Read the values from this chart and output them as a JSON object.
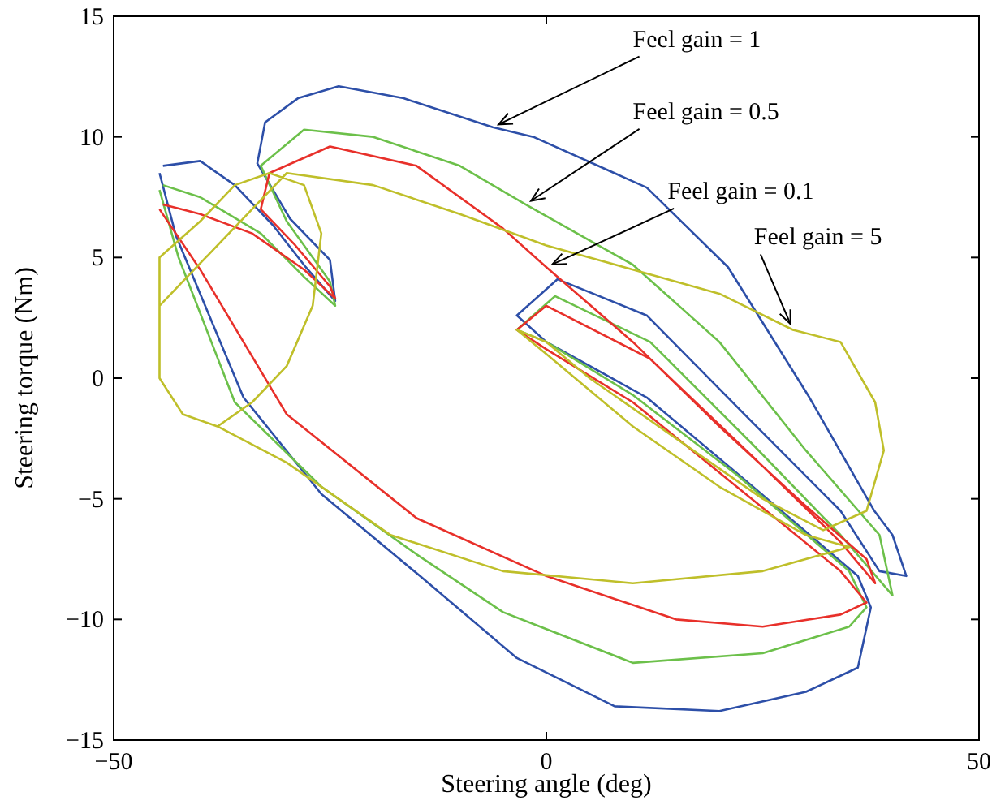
{
  "chart_data": {
    "type": "line",
    "xlabel": "Steering angle (deg)",
    "ylabel": "Steering torque (Nm)",
    "xlim": [
      -50,
      50
    ],
    "ylim": [
      -15,
      15
    ],
    "xticks": [
      -50,
      0,
      50
    ],
    "yticks": [
      -15,
      -10,
      -5,
      0,
      5,
      10,
      15
    ],
    "grid": false,
    "line_style": "solid",
    "marker": "none",
    "annotations": [
      {
        "text": "Feel gain = 1",
        "x": -6.2,
        "y": 10.4
      },
      {
        "text": "Feel gain = 0.5",
        "x": -2.4,
        "y": 7.2
      },
      {
        "text": "Feel gain = 0.1",
        "x": 0,
        "y": 4.6
      },
      {
        "text": "Feel gain = 5",
        "x": 28.5,
        "y": 2
      }
    ],
    "series": [
      {
        "color": "#2d4fa8",
        "x": [
          -44.7,
          -42.8,
          -35,
          -26,
          -14.6,
          -3.4,
          7.9,
          20,
          30,
          36,
          37.5,
          36,
          22.9,
          11.6,
          0,
          -3.4,
          1.3,
          11.6,
          22.9,
          34,
          38.5,
          41.6,
          40,
          37.9,
          30.4,
          21,
          11.6,
          -1.5,
          -6.2,
          -16.5,
          -24,
          -28.7,
          -32.5,
          -33.4,
          -29.6,
          -25,
          -24.4,
          -27.8,
          -31.5,
          -36,
          -40,
          -44.3
        ],
        "values": [
          8.5,
          5.9,
          -0.8,
          -4.8,
          -8.2,
          -11.6,
          -13.6,
          -13.8,
          -13,
          -12,
          -9.5,
          -8.2,
          -4.2,
          -0.8,
          1.5,
          2.6,
          4.1,
          2.6,
          -1.5,
          -5.5,
          -8,
          -8.2,
          -6.5,
          -5.5,
          -0.8,
          4.6,
          7.9,
          10,
          10.4,
          11.6,
          12.1,
          11.6,
          10.6,
          8.9,
          6.6,
          4.9,
          3.2,
          4.6,
          6.3,
          8,
          9,
          8.8
        ]
      },
      {
        "color": "#6cc04a",
        "x": [
          -44.7,
          -42.5,
          -36,
          -26,
          -15,
          -5,
          10,
          25,
          35,
          37,
          35,
          22,
          10,
          0,
          -3.4,
          1,
          12,
          24,
          34,
          40,
          38.5,
          30,
          20,
          10,
          -2.4,
          -10,
          -20,
          -28,
          -33,
          -30,
          -25,
          -24.4,
          -28,
          -33,
          -40,
          -44.3
        ],
        "values": [
          7.8,
          5,
          -1,
          -4.5,
          -7.3,
          -9.7,
          -11.8,
          -11.4,
          -10.3,
          -9.5,
          -8,
          -4,
          -0.7,
          1.5,
          2,
          3.4,
          1.5,
          -2.8,
          -6.5,
          -9,
          -6.5,
          -3,
          1.5,
          4.7,
          7.2,
          8.8,
          10,
          10.3,
          8.8,
          6.5,
          4,
          3,
          4.2,
          6,
          7.5,
          8
        ]
      },
      {
        "color": "#e8302a",
        "x": [
          -44.7,
          -40,
          -30,
          -15,
          0,
          15,
          25,
          34,
          37,
          34,
          22,
          10,
          0,
          -3.4,
          0,
          12,
          24,
          34,
          38,
          37,
          30,
          20,
          10,
          0,
          -5,
          -15,
          -25,
          -32,
          -33,
          -29,
          -25,
          -24.4,
          -28,
          -34,
          -40,
          -44.3
        ],
        "values": [
          7,
          4.5,
          -1.5,
          -5.8,
          -8.2,
          -10,
          -10.3,
          -9.8,
          -9.3,
          -8,
          -4.5,
          -1,
          1.2,
          2,
          3,
          0.8,
          -3.3,
          -6.8,
          -8.5,
          -7.5,
          -5.3,
          -2,
          1.5,
          4.6,
          6.2,
          8.8,
          9.6,
          8.5,
          7,
          5.5,
          3.8,
          3.3,
          4.5,
          6,
          6.8,
          7.2
        ]
      },
      {
        "color": "#bfbf2a",
        "x": [
          -44.7,
          -44.7,
          -42,
          -38,
          -34,
          -30,
          -27,
          -26,
          -28,
          -32,
          -36,
          -40,
          -44.7,
          -44.7,
          -30,
          -20,
          -10,
          0,
          10,
          20,
          28.5,
          34,
          38,
          39,
          37,
          32,
          25,
          15,
          5,
          0,
          -3.4,
          0,
          10,
          20,
          30,
          35,
          25,
          10,
          -5,
          -18,
          -30,
          -38
        ],
        "values": [
          3,
          0,
          -1.5,
          -2,
          -1,
          0.5,
          3,
          6,
          8,
          8.5,
          8,
          6.5,
          5,
          3,
          8.5,
          8,
          6.8,
          5.5,
          4.5,
          3.5,
          2,
          1.5,
          -1,
          -3,
          -5.5,
          -6.3,
          -5,
          -2.5,
          0,
          1.5,
          2,
          1,
          -2,
          -4.5,
          -6.5,
          -7,
          -8,
          -8.5,
          -8,
          -6.5,
          -3.5,
          -2
        ]
      }
    ]
  }
}
